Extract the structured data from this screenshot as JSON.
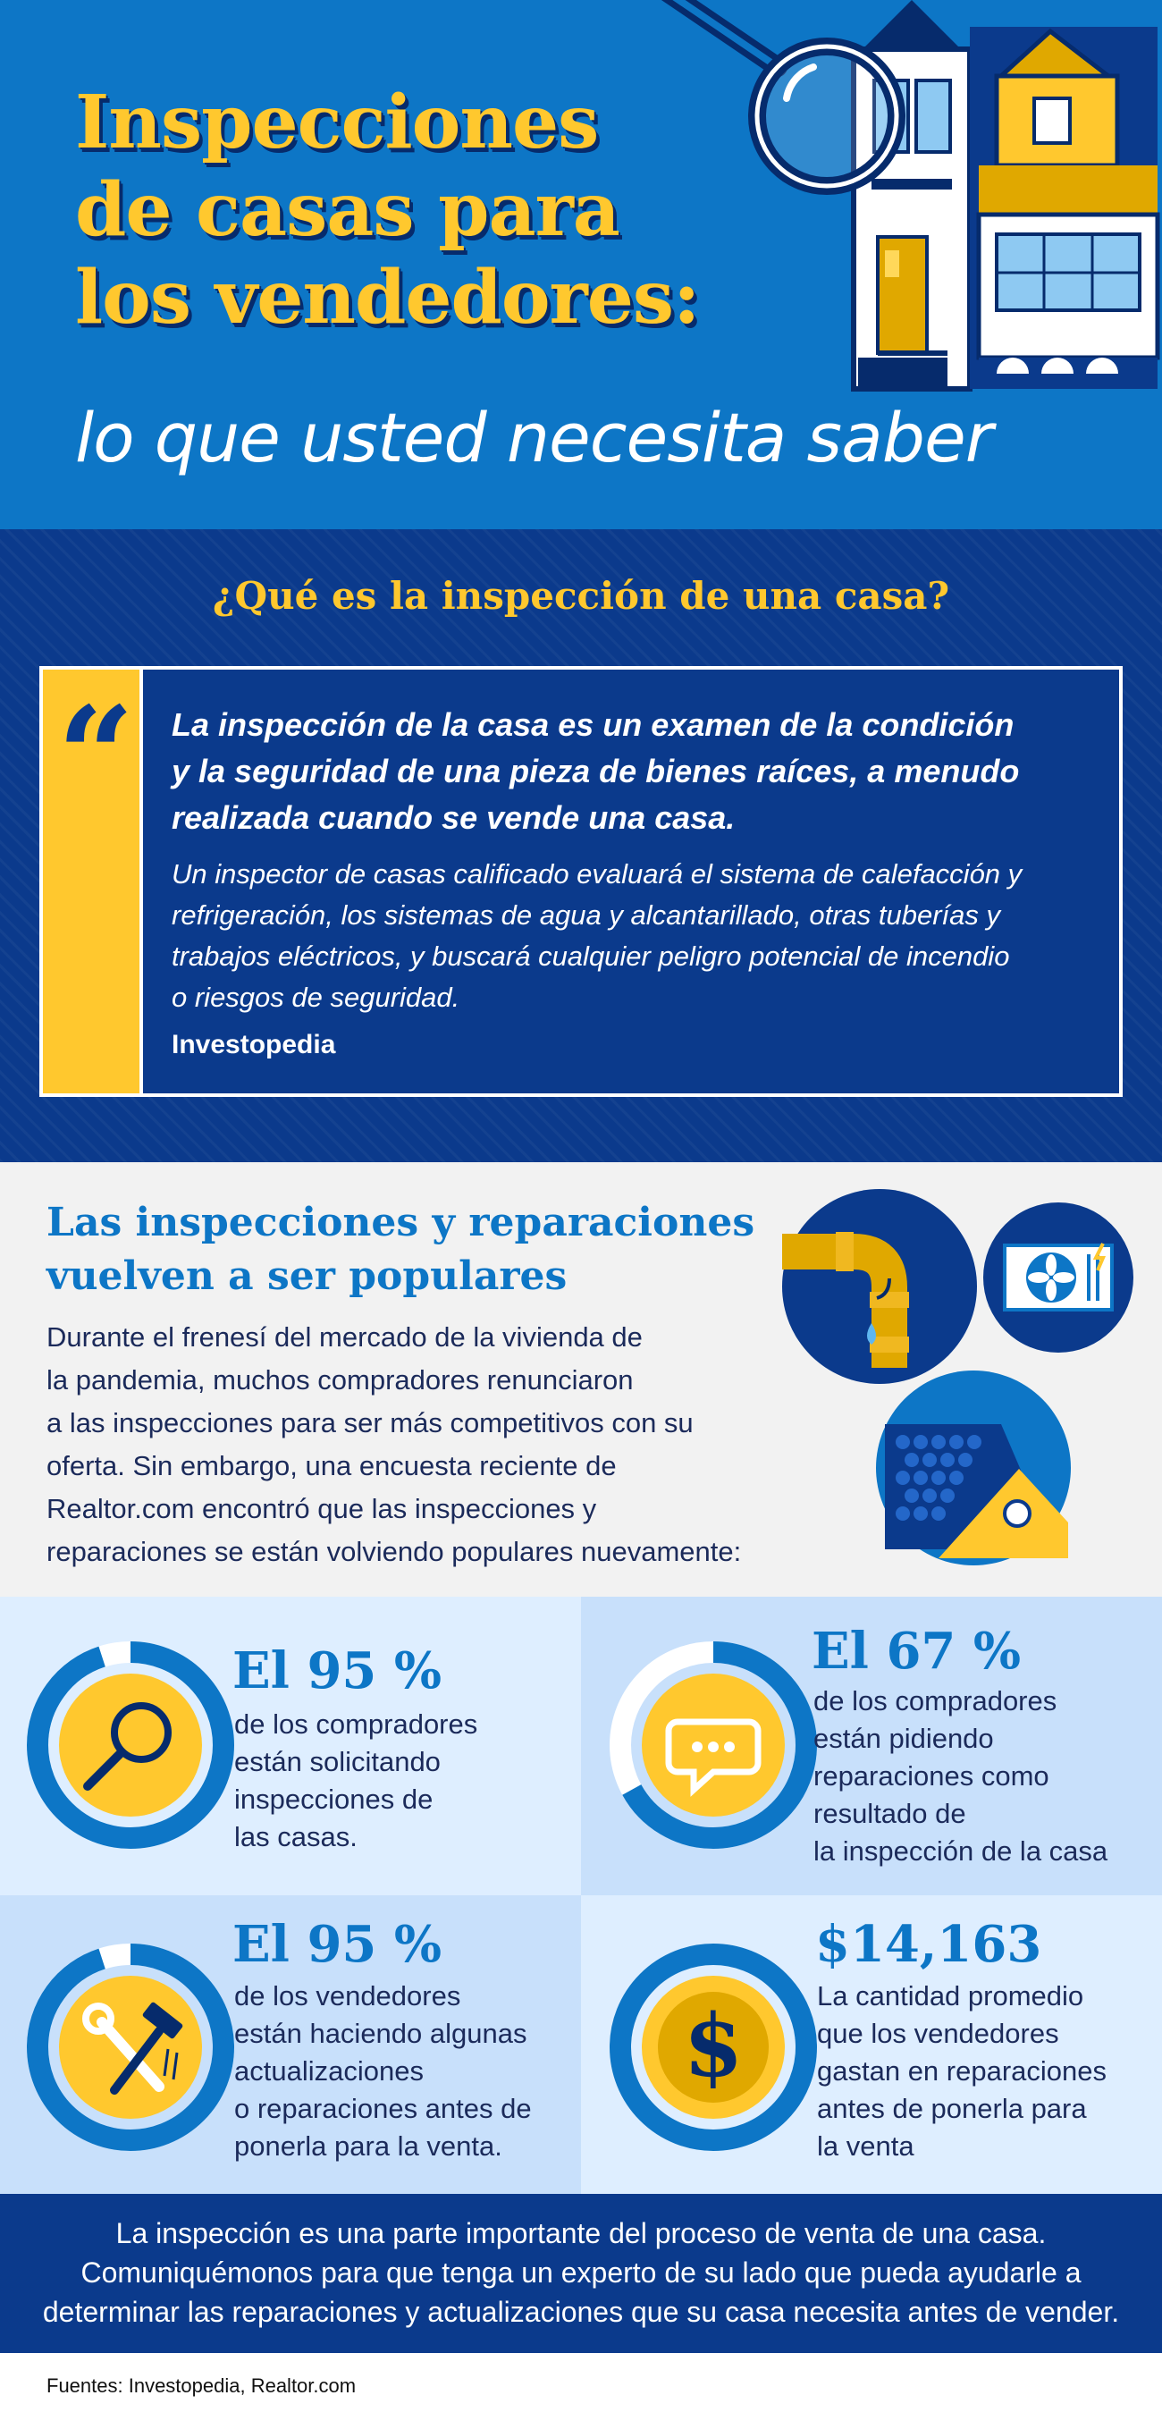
{
  "header": {
    "title_line1": "Inspecciones",
    "title_line2": "de casas para",
    "title_line3": "los vendedores:",
    "subtitle": "lo que usted necesita saber"
  },
  "quote_section": {
    "heading": "¿Qué es la inspección de una casa?",
    "quote_mark": "“",
    "main_line1": "La inspección de la casa es un examen de la condición",
    "main_line2": "y la seguridad de una pieza de bienes raíces, a menudo",
    "main_line3": "realizada cuando se vende una casa.",
    "detail_line1": "Un inspector de casas calificado evaluará el sistema de calefacción y",
    "detail_line2": "refrigeración, los sistemas de agua y alcantarillado, otras tuberías y",
    "detail_line3": "trabajos eléctricos, y buscará cualquier peligro potencial de incendio",
    "detail_line4": "o riesgos de seguridad.",
    "source": "Investopedia"
  },
  "popular": {
    "heading_line1": "Las inspecciones y reparaciones",
    "heading_line2": "vuelven a ser populares",
    "body_lines": [
      "Durante el frenesí del mercado de la vivienda de",
      "la pandemia, muchos compradores renunciaron",
      "a las inspecciones para ser más competitivos con su",
      "oferta. Sin embargo, una encuesta reciente de",
      "Realtor.com encontró que las inspecciones y",
      "reparaciones se están volviendo populares nuevamente:"
    ]
  },
  "stats": [
    {
      "value": "El 95 %",
      "lines": [
        "de los compradores",
        "están solicitando",
        "inspecciones de",
        "las casas."
      ],
      "icon": "magnifying-glass-icon",
      "ring_fraction": 0.95
    },
    {
      "value": "El 67 %",
      "lines": [
        "de los compradores",
        "están pidiendo",
        "reparaciones como",
        "resultado de",
        "la inspección de la casa"
      ],
      "icon": "speech-bubble-icon",
      "ring_fraction": 0.67
    },
    {
      "value": "El 95 %",
      "lines": [
        "de los vendedores",
        "están haciendo algunas",
        "actualizaciones",
        "o reparaciones antes de",
        "ponerla para la venta."
      ],
      "icon": "tools-icon",
      "ring_fraction": 0.95
    },
    {
      "value": "$14,163",
      "lines": [
        "La cantidad promedio",
        "que los vendedores",
        "gastan en reparaciones",
        "antes de ponerla para",
        "la venta"
      ],
      "icon": "dollar-coin-icon",
      "ring_fraction": 1.0
    }
  ],
  "footer": {
    "line1": "La inspección es una parte importante del proceso de venta de una casa.",
    "line2": "Comuniquémonos para que tenga un experto de su lado que pueda ayudarle a",
    "line3": "determinar las reparaciones y actualizaciones que su casa necesita antes de vender."
  },
  "sources": "Fuentes: Investopedia, Realtor.com",
  "colors": {
    "header_blue": "#0d76c6",
    "navy": "#0b3a8c",
    "yellow": "#ffc82e",
    "light_blue": "#deeeff"
  }
}
